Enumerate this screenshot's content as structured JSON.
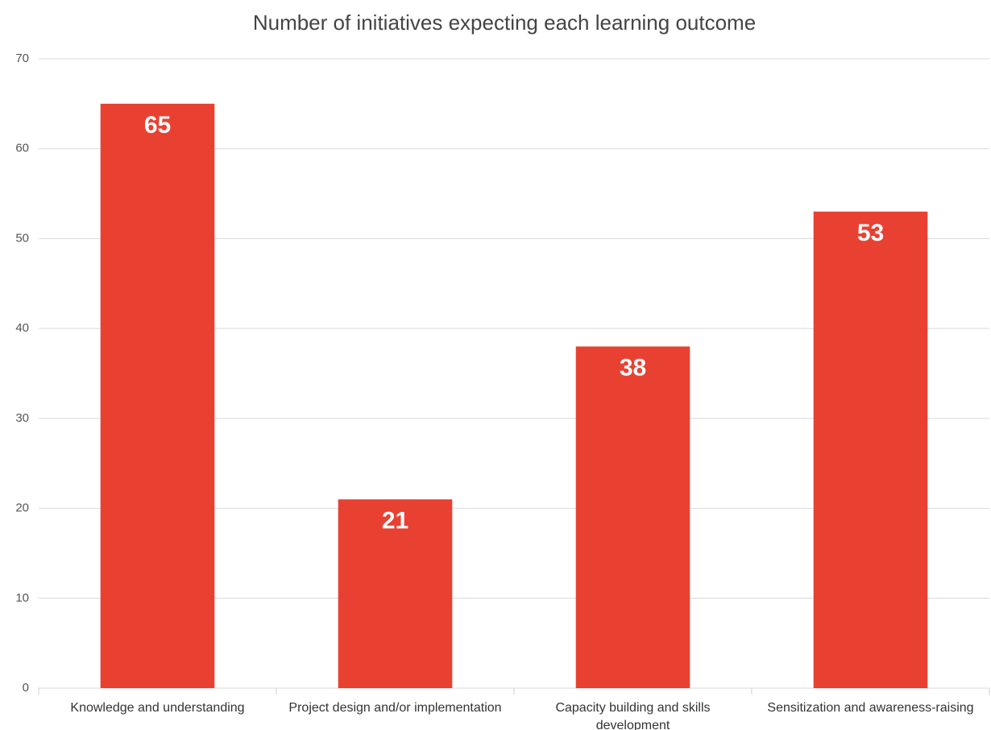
{
  "chart_data": {
    "type": "bar",
    "title": "Number of initiatives expecting each learning outcome",
    "categories": [
      "Knowledge and understanding",
      "Project design and/or implementation",
      "Capacity building and skills development",
      "Sensitization and awareness-raising"
    ],
    "values": [
      65,
      21,
      38,
      53
    ],
    "color": "#e84132",
    "ylim": [
      0,
      70
    ],
    "yticks": [
      0,
      10,
      20,
      30,
      40,
      50,
      60,
      70
    ],
    "grid": true
  }
}
